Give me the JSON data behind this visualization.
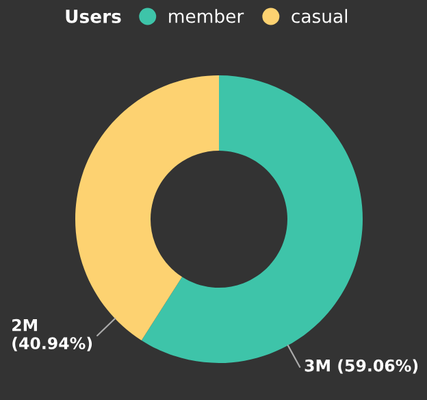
{
  "chart_data": {
    "type": "donut",
    "legend_title": "Users",
    "categories": [
      "member",
      "casual"
    ],
    "values": [
      59.06,
      40.94
    ],
    "colors": [
      "#3ec4a9",
      "#fdd271"
    ],
    "value_labels": [
      "3M (59.06%)",
      "2M\n(40.94%)"
    ],
    "legend": "top"
  }
}
